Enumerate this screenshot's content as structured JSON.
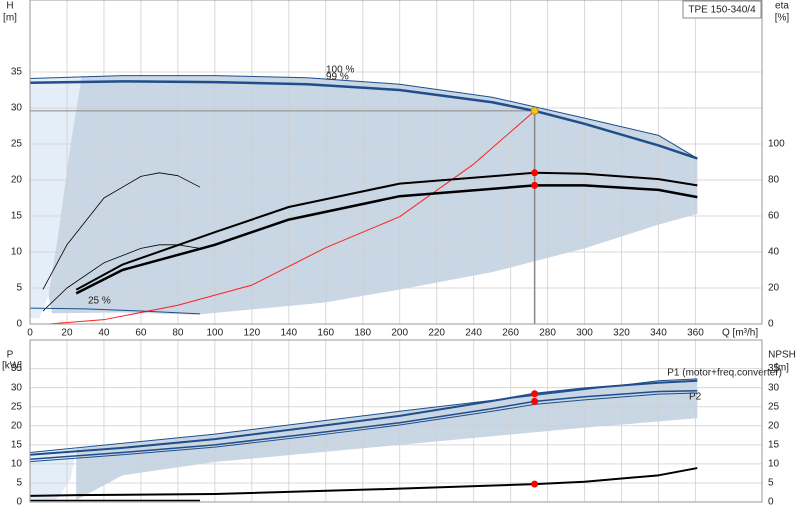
{
  "chart_data": [
    {
      "type": "line",
      "title": "TPE 150-340/4",
      "y_label": "H",
      "y_unit": "[m]",
      "y2_label": "eta",
      "y2_unit": "[%]",
      "x_label": "Q [m³/h]",
      "xlim": [
        0,
        396
      ],
      "xticks": [
        0,
        20,
        40,
        60,
        80,
        100,
        120,
        140,
        160,
        180,
        200,
        220,
        240,
        260,
        280,
        300,
        320,
        340,
        360
      ],
      "ylim": [
        0,
        45
      ],
      "yticks": [
        0,
        5,
        10,
        15,
        20,
        25,
        30,
        35
      ],
      "y2lim": [
        0,
        180
      ],
      "y2ticks": [
        0,
        20,
        40,
        60,
        80,
        100
      ],
      "grid": true,
      "x_tick_labels": true,
      "crosshair": true,
      "series": [
        {
          "style": "area",
          "color": "#e4eef9",
          "x": [
            0,
            28,
            22,
            15,
            10,
            5,
            0
          ],
          "values": [
            34.1,
            34.4,
            25,
            12,
            4,
            0.8,
            0.8
          ]
        },
        {
          "style": "area",
          "color": "#c9d6e3",
          "x": [
            28,
            100,
            150,
            200,
            250,
            300,
            340,
            361,
            361,
            340,
            300,
            250,
            200,
            160,
            90,
            50,
            12,
            10,
            15,
            22
          ],
          "values": [
            34.4,
            34.5,
            34.2,
            33.3,
            31.5,
            28.6,
            26.2,
            23,
            15.3,
            13.8,
            10.5,
            7.2,
            4.8,
            3.0,
            1.3,
            1.6,
            1.5,
            4,
            12,
            25
          ]
        },
        {
          "style": "line",
          "name": "100 %",
          "color": "#1f4e8c",
          "width": 1,
          "x": [
            0,
            50,
            100,
            150,
            200,
            250,
            300,
            340,
            361
          ],
          "values": [
            34.1,
            34.5,
            34.5,
            34.2,
            33.3,
            31.5,
            28.6,
            26.2,
            23
          ]
        },
        {
          "style": "line",
          "name": "99 %",
          "color": "#1f4e8c",
          "width": 2.5,
          "x": [
            0,
            50,
            100,
            150,
            200,
            250,
            273,
            300,
            340,
            361
          ],
          "values": [
            33.5,
            33.7,
            33.6,
            33.3,
            32.5,
            30.8,
            29.6,
            27.8,
            24.8,
            23
          ]
        },
        {
          "style": "line",
          "color": "#ff2020",
          "width": 1,
          "x": [
            10,
            40,
            80,
            120,
            160,
            200,
            240,
            273
          ],
          "values": [
            0,
            0.6,
            2.6,
            5.4,
            10.6,
            14.9,
            22.2,
            29.6
          ]
        },
        {
          "style": "line",
          "axis": "y2",
          "color": "#000000",
          "width": 2,
          "x": [
            25,
            50,
            100,
            140,
            200,
            273,
            300,
            340,
            361
          ],
          "values": [
            19,
            33,
            51,
            65,
            78,
            84,
            83.5,
            80.5,
            77
          ]
        },
        {
          "style": "line",
          "axis": "y2",
          "color": "#000000",
          "width": 2.5,
          "x": [
            25,
            50,
            100,
            140,
            200,
            273,
            300,
            340,
            361
          ],
          "values": [
            17,
            30,
            44,
            58,
            71,
            77,
            77,
            74.5,
            70.5
          ]
        },
        {
          "style": "line",
          "color": "#000000",
          "width": 0.8,
          "x": [
            7,
            20,
            40,
            60,
            70,
            80,
            92
          ],
          "values": [
            4.8,
            11,
            17.5,
            20.5,
            21,
            20.6,
            19
          ]
        },
        {
          "style": "line",
          "color": "#000000",
          "width": 0.8,
          "x": [
            7,
            20,
            40,
            60,
            70,
            80,
            92
          ],
          "values": [
            1.8,
            5,
            8.5,
            10.5,
            11,
            11,
            10.5
          ]
        },
        {
          "style": "line",
          "name": "25 %",
          "color": "#1f4e8c",
          "width": 1,
          "x": [
            0,
            30,
            60,
            92
          ],
          "values": [
            2.2,
            2.1,
            1.8,
            1.4
          ]
        }
      ],
      "markers": [
        {
          "x": 273,
          "y": 29.6,
          "color": "#f5c518"
        },
        {
          "x": 273,
          "y": 84,
          "axis": "y2",
          "color": "#ff0000"
        },
        {
          "x": 273,
          "y": 77,
          "axis": "y2",
          "color": "#ff0000"
        }
      ]
    },
    {
      "type": "line",
      "y_label": "P",
      "y_unit": "[kW]",
      "y2_label": "NPSH",
      "y2_unit": "[m]",
      "xlim": [
        0,
        396
      ],
      "xticks": [
        0,
        20,
        40,
        60,
        80,
        100,
        120,
        140,
        160,
        180,
        200,
        220,
        240,
        260,
        280,
        300,
        320,
        340,
        360
      ],
      "ylim": [
        0,
        42.5
      ],
      "yticks": [
        0,
        5,
        10,
        15,
        20,
        25,
        30,
        35
      ],
      "y2lim": [
        0,
        42.5
      ],
      "y2ticks": [
        0,
        5,
        10,
        15,
        20,
        25,
        30,
        35
      ],
      "grid": true,
      "x_tick_labels": false,
      "crosshair": false,
      "series": [
        {
          "style": "area",
          "color": "#e4eef9",
          "x": [
            0,
            25,
            22,
            15,
            10,
            0
          ],
          "values": [
            13,
            14,
            6,
            1,
            0,
            0
          ]
        },
        {
          "style": "area",
          "color": "#c9d6e3",
          "x": [
            25,
            100,
            200,
            300,
            340,
            361,
            361,
            300,
            200,
            100,
            50,
            25
          ],
          "values": [
            14,
            17.8,
            23.8,
            29.5,
            31.8,
            32.3,
            22,
            19.5,
            15,
            10.5,
            7,
            0.5
          ]
        },
        {
          "style": "line",
          "color": "#1f4e8c",
          "width": 1,
          "x": [
            0,
            100,
            200,
            300,
            340,
            361
          ],
          "values": [
            13,
            17.8,
            23.8,
            29.5,
            31.8,
            32.3
          ]
        },
        {
          "style": "line",
          "name": "P1 (motor+freq.converter)",
          "color": "#1f4e8c",
          "width": 2,
          "x": [
            0,
            50,
            100,
            150,
            200,
            250,
            273,
            300,
            340,
            361
          ],
          "values": [
            12.4,
            14.2,
            16.5,
            19.5,
            22.6,
            26.5,
            28.4,
            29.8,
            31.3,
            31.8
          ]
        },
        {
          "style": "line",
          "name": "P2",
          "color": "#1f4e8c",
          "width": 1.5,
          "x": [
            0,
            50,
            100,
            150,
            200,
            250,
            273,
            300,
            340,
            361
          ],
          "values": [
            11.2,
            13,
            15,
            17.8,
            20.8,
            24.5,
            26.4,
            27.6,
            29,
            29.2
          ]
        },
        {
          "style": "line",
          "color": "#1f4e8c",
          "width": 1,
          "x": [
            0,
            50,
            100,
            150,
            200,
            250,
            273,
            300,
            340,
            361
          ],
          "values": [
            10.6,
            12.4,
            14.4,
            17.2,
            20.2,
            23.8,
            25.6,
            26.8,
            28.3,
            28.6
          ]
        },
        {
          "style": "line",
          "axis": "y2",
          "color": "#000000",
          "width": 2,
          "x": [
            0,
            25,
            100,
            200,
            273,
            300,
            340,
            361
          ],
          "values": [
            1.6,
            1.8,
            2.1,
            3.5,
            4.7,
            5.3,
            7,
            8.9
          ]
        },
        {
          "style": "line",
          "color": "#000000",
          "width": 1.5,
          "x": [
            0,
            92
          ],
          "values": [
            0.4,
            0.4
          ]
        }
      ],
      "markers": [
        {
          "x": 273,
          "y": 28.4,
          "color": "#ff0000"
        },
        {
          "x": 273,
          "y": 26.4,
          "color": "#ff0000"
        },
        {
          "x": 273,
          "y": 4.7,
          "axis": "y2",
          "color": "#ff0000"
        }
      ]
    }
  ]
}
